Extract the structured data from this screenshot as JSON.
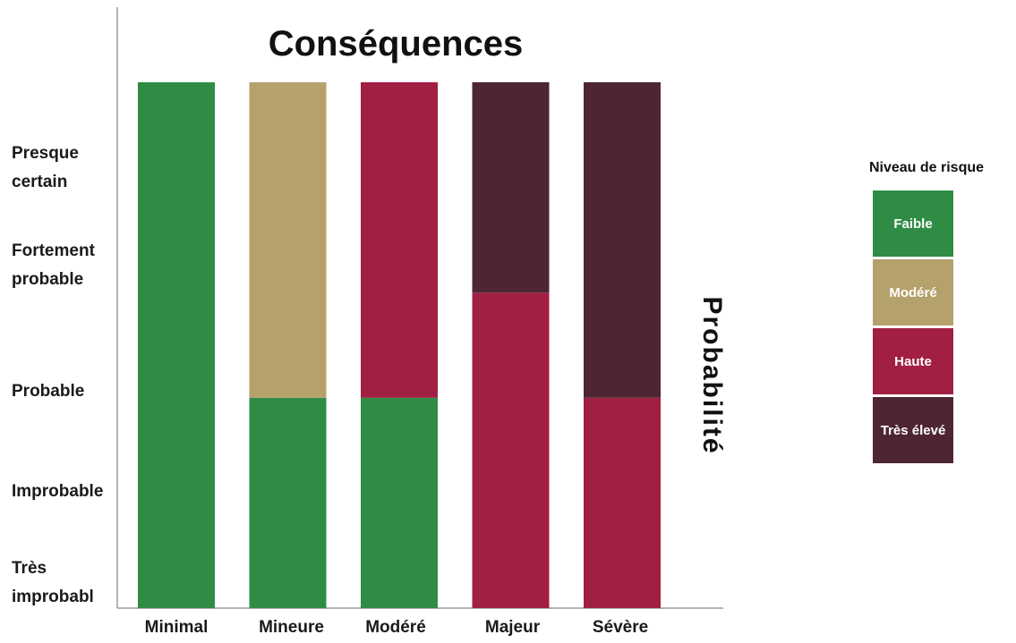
{
  "chart_data": {
    "type": "bar",
    "title": "Conséquences",
    "ylabel": "Probabilité",
    "xlabel": "",
    "categories": [
      "Minimal",
      "Mineure",
      "Modéré",
      "Majeur",
      "Sévère"
    ],
    "y_levels": [
      "Très improbabl",
      "Improbable",
      "Probable",
      "Fortement probable",
      "Presque certain"
    ],
    "ylim": [
      0,
      5
    ],
    "legend": {
      "title": "Niveau de risque",
      "placement": "right",
      "entries": [
        {
          "key": "faible",
          "label": "Faible",
          "color": "#2f8c45"
        },
        {
          "key": "modere",
          "label": "Modéré",
          "color": "#b5a16b"
        },
        {
          "key": "haute",
          "label": "Haute",
          "color": "#a11f43"
        },
        {
          "key": "tres_eleve",
          "label": "Très élevé",
          "color": "#4e2633"
        }
      ]
    },
    "stacks": [
      {
        "category": "Minimal",
        "segments": [
          {
            "level": "faible",
            "from": 0,
            "to": 5
          }
        ]
      },
      {
        "category": "Mineure",
        "segments": [
          {
            "level": "faible",
            "from": 0,
            "to": 2
          },
          {
            "level": "modere",
            "from": 2,
            "to": 5
          }
        ]
      },
      {
        "category": "Modéré",
        "segments": [
          {
            "level": "faible",
            "from": 0,
            "to": 2
          },
          {
            "level": "haute",
            "from": 2,
            "to": 5
          }
        ]
      },
      {
        "category": "Majeur",
        "segments": [
          {
            "level": "haute",
            "from": 0,
            "to": 3
          },
          {
            "level": "tres_eleve",
            "from": 3,
            "to": 5
          }
        ]
      },
      {
        "category": "Sévère",
        "segments": [
          {
            "level": "haute",
            "from": 0,
            "to": 2
          },
          {
            "level": "tres_eleve",
            "from": 2,
            "to": 5
          }
        ]
      }
    ],
    "grid": false
  }
}
